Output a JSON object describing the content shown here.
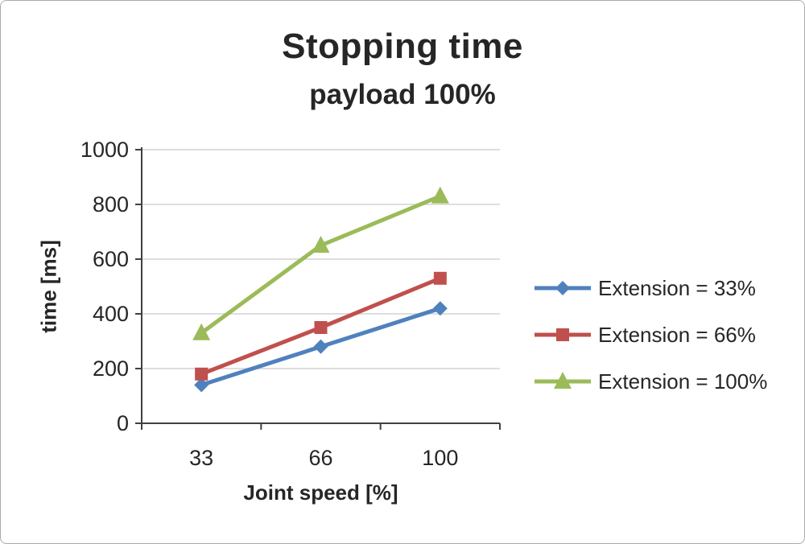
{
  "chart_data": {
    "type": "line",
    "title": "Stopping time",
    "subtitle": "payload 100%",
    "xlabel": "Joint speed [%]",
    "ylabel": "time [ms]",
    "categories": [
      "33",
      "66",
      "100"
    ],
    "series": [
      {
        "name": "Extension = 33%",
        "values": [
          140,
          280,
          420
        ],
        "color": "#4f81bd",
        "marker": "diamond"
      },
      {
        "name": "Extension = 66%",
        "values": [
          180,
          350,
          530
        ],
        "color": "#c0504d",
        "marker": "square"
      },
      {
        "name": "Extension = 100%",
        "values": [
          330,
          650,
          830
        ],
        "color": "#9bbb59",
        "marker": "triangle"
      }
    ],
    "ylim": [
      0,
      1000
    ],
    "yticks": [
      0,
      200,
      400,
      600,
      800,
      1000
    ],
    "grid": true,
    "grid_color": "#d3d3d3",
    "axis_color": "#404040",
    "legend_position": "right"
  }
}
